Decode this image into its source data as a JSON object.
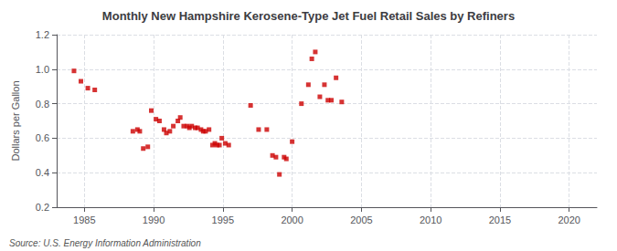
{
  "chart_data": {
    "type": "scatter",
    "title": "Monthly New Hampshire Kerosene-Type Jet Fuel Retail Sales by Refiners",
    "ylabel": "Dollars per Gallon",
    "annotations": [
      "Source: U.S. Energy Information Administration"
    ],
    "x": [
      1984.25,
      1984.75,
      1985.25,
      1985.75,
      1988.5,
      1988.83,
      1989.0,
      1989.25,
      1989.58,
      1989.83,
      1990.17,
      1990.42,
      1990.75,
      1990.92,
      1991.17,
      1991.42,
      1991.75,
      1991.92,
      1992.17,
      1992.42,
      1992.58,
      1992.75,
      1993.0,
      1993.17,
      1993.42,
      1993.58,
      1993.75,
      1994.0,
      1994.25,
      1994.42,
      1994.58,
      1994.75,
      1994.92,
      1995.17,
      1995.42,
      1997.0,
      1997.58,
      1998.17,
      1998.58,
      1998.83,
      1999.08,
      1999.42,
      1999.58,
      2000.0,
      2000.67,
      2001.17,
      2001.42,
      2001.67,
      2002.0,
      2002.33,
      2002.58,
      2002.83,
      2003.17,
      2003.58
    ],
    "values": [
      0.99,
      0.93,
      0.89,
      0.88,
      0.64,
      0.65,
      0.64,
      0.54,
      0.55,
      0.76,
      0.71,
      0.7,
      0.65,
      0.63,
      0.64,
      0.67,
      0.7,
      0.72,
      0.67,
      0.67,
      0.66,
      0.67,
      0.66,
      0.66,
      0.65,
      0.64,
      0.64,
      0.65,
      0.56,
      0.57,
      0.56,
      0.56,
      0.6,
      0.57,
      0.56,
      0.79,
      0.65,
      0.65,
      0.5,
      0.49,
      0.39,
      0.49,
      0.48,
      0.58,
      0.8,
      0.91,
      1.06,
      1.1,
      0.84,
      0.91,
      0.82,
      0.82,
      0.95,
      0.81
    ],
    "color": "#cc0000",
    "marker": "square",
    "xlim": [
      1983,
      2022
    ],
    "xticks": [
      1985,
      1990,
      1995,
      2000,
      2005,
      2010,
      2015,
      2020
    ],
    "ylim": [
      0.2,
      1.2
    ],
    "yticks": [
      0.2,
      0.4,
      0.6,
      0.8,
      {
        "value": 1.0,
        "label": "1.0"
      },
      1.2
    ],
    "grid": true
  }
}
